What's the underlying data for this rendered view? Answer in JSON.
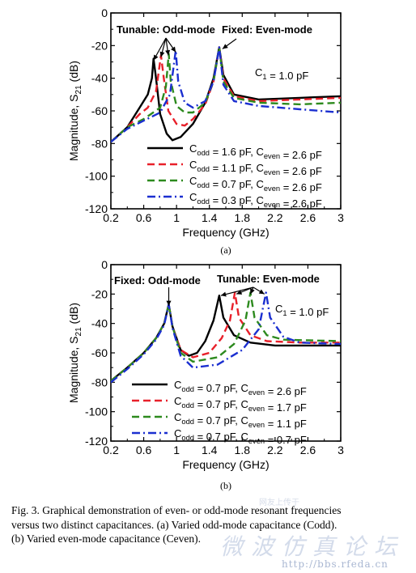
{
  "chart_data": [
    {
      "type": "line",
      "panel_label": "(a)",
      "xlabel": "Frequency (GHz)",
      "ylabel": "Magnitude, S21 (dB)",
      "xlim": [
        0.2,
        3
      ],
      "ylim": [
        -120,
        0
      ],
      "xticks": [
        "0.2",
        "0.6",
        "1",
        "1.4",
        "1.8",
        "2.2",
        "2.6",
        "3"
      ],
      "yticks": [
        "0",
        "-20",
        "-40",
        "-60",
        "-80",
        "-100",
        "-120"
      ],
      "annotations": {
        "tunable": "Tunable: Odd-mode",
        "fixed": "Fixed: Even-mode",
        "c1": "C1 = 1.0 pF"
      },
      "legend_position": "bottom-right",
      "series": [
        {
          "name": "Codd = 1.6 pF, Ceven = 2.6 pF",
          "color": "#000000",
          "dash": "solid",
          "points": [
            [
              0.2,
              -79
            ],
            [
              0.4,
              -70
            ],
            [
              0.55,
              -58
            ],
            [
              0.65,
              -50
            ],
            [
              0.7,
              -40
            ],
            [
              0.72,
              -28
            ],
            [
              0.745,
              -38
            ],
            [
              0.8,
              -62
            ],
            [
              0.88,
              -74
            ],
            [
              0.95,
              -78
            ],
            [
              1.05,
              -76
            ],
            [
              1.2,
              -68
            ],
            [
              1.35,
              -55
            ],
            [
              1.45,
              -40
            ],
            [
              1.52,
              -21
            ],
            [
              1.57,
              -38
            ],
            [
              1.7,
              -50
            ],
            [
              2.0,
              -53
            ],
            [
              2.5,
              -52
            ],
            [
              3.0,
              -51
            ]
          ]
        },
        {
          "name": "Codd = 1.1 pF, Ceven = 2.6 pF",
          "color": "#e8202a",
          "dash": "dash",
          "points": [
            [
              0.2,
              -79
            ],
            [
              0.4,
              -70
            ],
            [
              0.55,
              -62
            ],
            [
              0.65,
              -58
            ],
            [
              0.75,
              -48
            ],
            [
              0.81,
              -26
            ],
            [
              0.845,
              -40
            ],
            [
              0.9,
              -60
            ],
            [
              1.0,
              -68
            ],
            [
              1.1,
              -69
            ],
            [
              1.2,
              -65
            ],
            [
              1.35,
              -56
            ],
            [
              1.45,
              -42
            ],
            [
              1.52,
              -21
            ],
            [
              1.57,
              -40
            ],
            [
              1.7,
              -51
            ],
            [
              2.0,
              -54
            ],
            [
              2.5,
              -53
            ],
            [
              3.0,
              -52
            ]
          ]
        },
        {
          "name": "Codd = 0.7 pF, Ceven = 2.6 pF",
          "color": "#2d8a1e",
          "dash": "dash",
          "points": [
            [
              0.2,
              -79
            ],
            [
              0.4,
              -70
            ],
            [
              0.6,
              -65
            ],
            [
              0.8,
              -58
            ],
            [
              0.87,
              -45
            ],
            [
              0.905,
              -25
            ],
            [
              0.93,
              -42
            ],
            [
              1.0,
              -57
            ],
            [
              1.1,
              -61
            ],
            [
              1.2,
              -61
            ],
            [
              1.35,
              -55
            ],
            [
              1.45,
              -42
            ],
            [
              1.52,
              -21
            ],
            [
              1.57,
              -42
            ],
            [
              1.7,
              -52
            ],
            [
              2.0,
              -55
            ],
            [
              2.5,
              -56
            ],
            [
              3.0,
              -55
            ]
          ]
        },
        {
          "name": "Codd = 0.3 pF, Ceven = 2.6 pF",
          "color": "#1b2fd0",
          "dash": "dashdot",
          "points": [
            [
              0.2,
              -79
            ],
            [
              0.4,
              -71
            ],
            [
              0.6,
              -66
            ],
            [
              0.8,
              -61
            ],
            [
              0.92,
              -50
            ],
            [
              0.99,
              -23
            ],
            [
              1.02,
              -42
            ],
            [
              1.1,
              -55
            ],
            [
              1.2,
              -58
            ],
            [
              1.35,
              -54
            ],
            [
              1.45,
              -42
            ],
            [
              1.52,
              -21
            ],
            [
              1.57,
              -44
            ],
            [
              1.7,
              -54
            ],
            [
              2.0,
              -57
            ],
            [
              2.5,
              -59
            ],
            [
              3.0,
              -61
            ]
          ]
        }
      ]
    },
    {
      "type": "line",
      "panel_label": "(b)",
      "xlabel": "Frequency (GHz)",
      "ylabel": "Magnitude, S21 (dB)",
      "xlim": [
        0.2,
        3
      ],
      "ylim": [
        -120,
        0
      ],
      "xticks": [
        "0.2",
        "0.6",
        "1",
        "1.4",
        "1.8",
        "2.2",
        "2.6",
        "3"
      ],
      "yticks": [
        "0",
        "-20",
        "-40",
        "-60",
        "-80",
        "-100",
        "-120"
      ],
      "annotations": {
        "fixed": "Fixed: Odd-mode",
        "tunable": "Tunable: Even-mode",
        "c1": "C1 = 1.0 pF"
      },
      "legend_position": "bottom-right",
      "series": [
        {
          "name": "Codd = 0.7 pF, Ceven = 2.6 pF",
          "color": "#000000",
          "dash": "solid",
          "points": [
            [
              0.2,
              -79
            ],
            [
              0.4,
              -70
            ],
            [
              0.6,
              -60
            ],
            [
              0.75,
              -50
            ],
            [
              0.85,
              -40
            ],
            [
              0.905,
              -27
            ],
            [
              0.95,
              -42
            ],
            [
              1.05,
              -58
            ],
            [
              1.15,
              -62
            ],
            [
              1.25,
              -60
            ],
            [
              1.35,
              -52
            ],
            [
              1.45,
              -38
            ],
            [
              1.52,
              -21
            ],
            [
              1.57,
              -36
            ],
            [
              1.7,
              -48
            ],
            [
              1.9,
              -53
            ],
            [
              2.2,
              -55
            ],
            [
              3.0,
              -55
            ]
          ]
        },
        {
          "name": "Codd = 0.7 pF, Ceven = 1.7 pF",
          "color": "#e8202a",
          "dash": "dash",
          "points": [
            [
              0.2,
              -79
            ],
            [
              0.4,
              -70
            ],
            [
              0.6,
              -60
            ],
            [
              0.75,
              -50
            ],
            [
              0.85,
              -40
            ],
            [
              0.905,
              -27
            ],
            [
              0.95,
              -42
            ],
            [
              1.05,
              -58
            ],
            [
              1.2,
              -63
            ],
            [
              1.4,
              -60
            ],
            [
              1.55,
              -50
            ],
            [
              1.65,
              -38
            ],
            [
              1.71,
              -19
            ],
            [
              1.76,
              -36
            ],
            [
              1.9,
              -48
            ],
            [
              2.1,
              -52
            ],
            [
              2.5,
              -53
            ],
            [
              3.0,
              -53
            ]
          ]
        },
        {
          "name": "Codd = 0.7 pF, Ceven = 1.1 pF",
          "color": "#2d8a1e",
          "dash": "dash",
          "points": [
            [
              0.2,
              -79
            ],
            [
              0.4,
              -70
            ],
            [
              0.6,
              -60
            ],
            [
              0.75,
              -50
            ],
            [
              0.85,
              -40
            ],
            [
              0.905,
              -27
            ],
            [
              0.95,
              -42
            ],
            [
              1.05,
              -60
            ],
            [
              1.2,
              -66
            ],
            [
              1.5,
              -63
            ],
            [
              1.7,
              -54
            ],
            [
              1.84,
              -38
            ],
            [
              1.9,
              -19
            ],
            [
              1.95,
              -36
            ],
            [
              2.1,
              -48
            ],
            [
              2.3,
              -51
            ],
            [
              3.0,
              -52
            ]
          ]
        },
        {
          "name": "Codd = 0.7 pF, Ceven = 0.7 pF",
          "color": "#1b2fd0",
          "dash": "dashdot",
          "points": [
            [
              0.2,
              -80
            ],
            [
              0.4,
              -71
            ],
            [
              0.6,
              -61
            ],
            [
              0.75,
              -51
            ],
            [
              0.85,
              -41
            ],
            [
              0.905,
              -27
            ],
            [
              0.95,
              -43
            ],
            [
              1.05,
              -62
            ],
            [
              1.2,
              -70
            ],
            [
              1.5,
              -68
            ],
            [
              1.8,
              -58
            ],
            [
              2.0,
              -44
            ],
            [
              2.09,
              -19
            ],
            [
              2.14,
              -36
            ],
            [
              2.3,
              -49
            ],
            [
              2.5,
              -53
            ],
            [
              3.0,
              -54
            ]
          ]
        }
      ]
    }
  ],
  "caption": {
    "line1": "Fig. 3.   Graphical demonstration of even- or odd-mode resonant frequencies",
    "line2": "versus two distinct capacitances. (a) Varied odd-mode capacitance (Codd).",
    "line3": "(b) Varied even-mode capacitance (Ceven)."
  },
  "watermark": {
    "title": "微波仿真论坛",
    "url": "http://bbs.rfeda.cn",
    "top": "网友上传于"
  }
}
